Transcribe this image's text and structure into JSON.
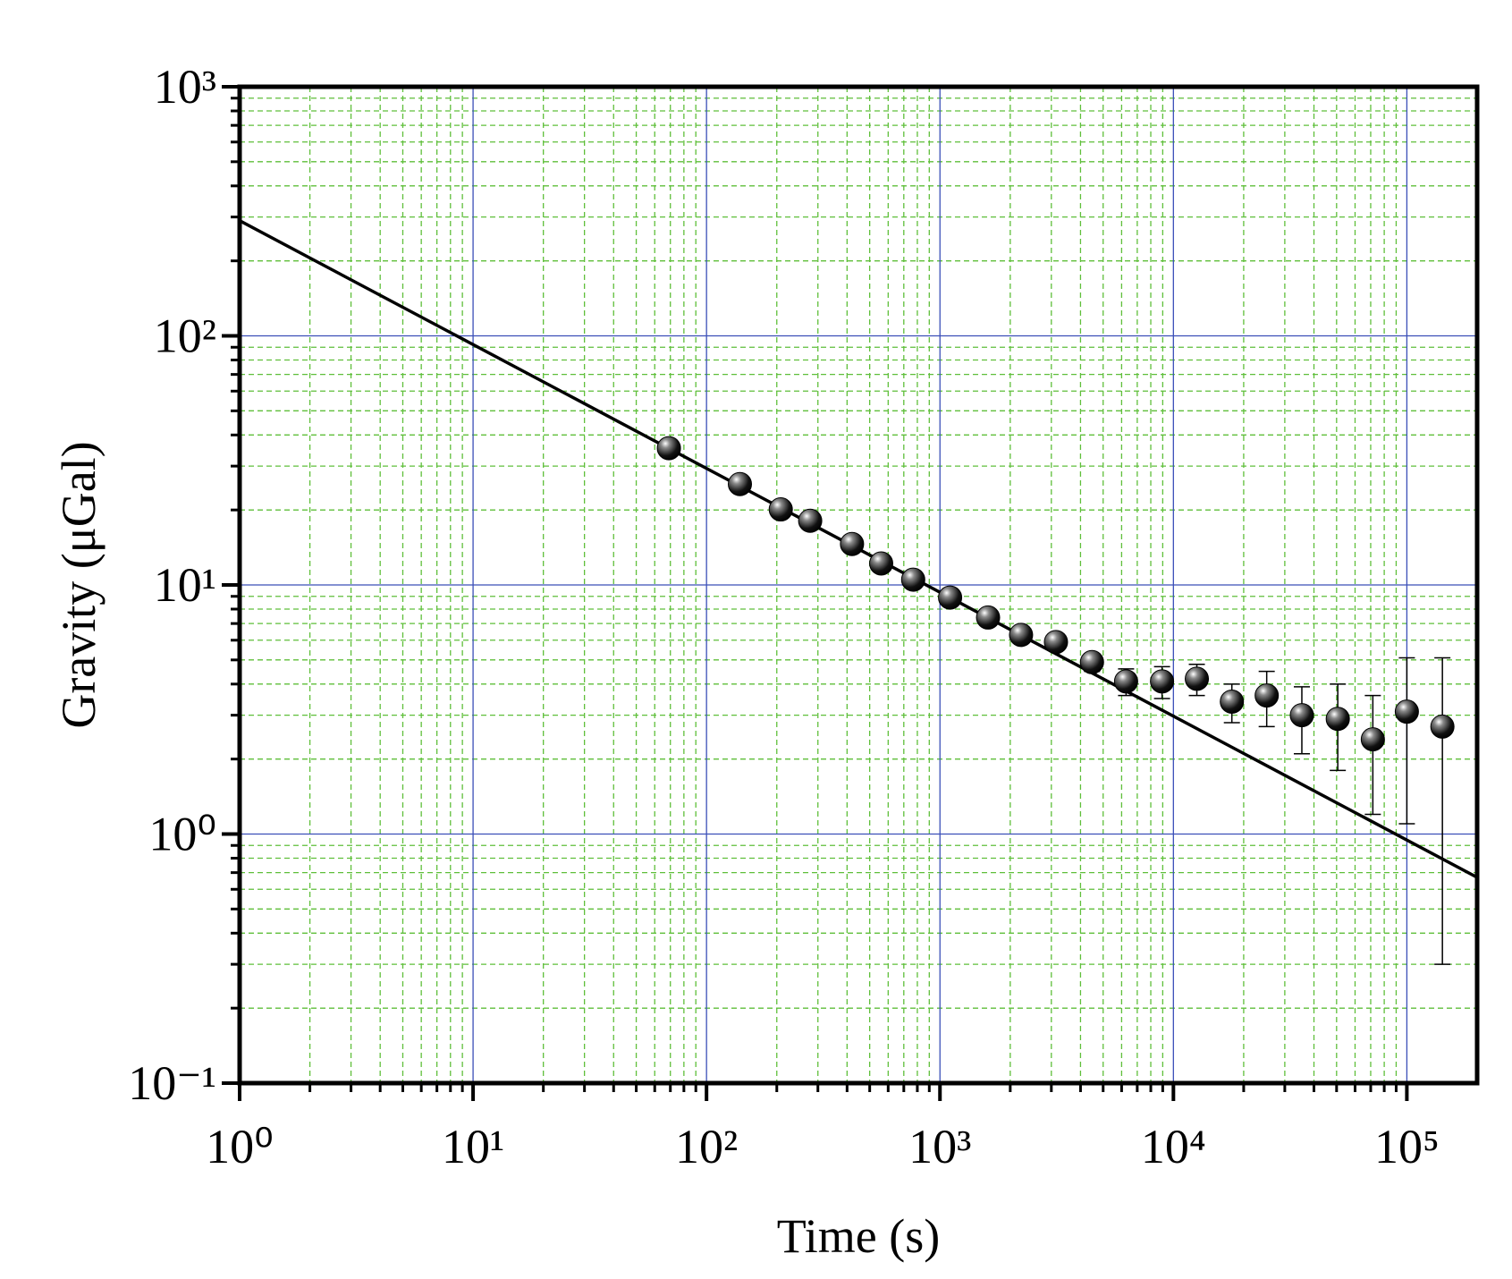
{
  "chart_data": {
    "type": "scatter",
    "xlabel": "Time (s)",
    "ylabel": "Gravity (μGal)",
    "xscale": "log",
    "yscale": "log",
    "xlim": [
      1,
      200000
    ],
    "ylim": [
      0.1,
      1000
    ],
    "xticks": [
      {
        "value": 1,
        "label": "10⁰"
      },
      {
        "value": 10,
        "label": "10¹"
      },
      {
        "value": 100,
        "label": "10²"
      },
      {
        "value": 1000,
        "label": "10³"
      },
      {
        "value": 10000,
        "label": "10⁴"
      },
      {
        "value": 100000,
        "label": "10⁵"
      }
    ],
    "yticks": [
      {
        "value": 0.1,
        "label": "10⁻¹"
      },
      {
        "value": 1,
        "label": "10⁰"
      },
      {
        "value": 10,
        "label": "10¹"
      },
      {
        "value": 100,
        "label": "10²"
      },
      {
        "value": 1000,
        "label": "10³"
      }
    ],
    "xminor": [
      2,
      3,
      4,
      5,
      6,
      7,
      8,
      9,
      20,
      30,
      40,
      50,
      60,
      70,
      80,
      90,
      200,
      300,
      400,
      500,
      600,
      700,
      800,
      900,
      2000,
      3000,
      4000,
      5000,
      6000,
      7000,
      8000,
      9000,
      20000,
      30000,
      40000,
      50000,
      60000,
      70000,
      80000,
      90000
    ],
    "yminor": [
      0.2,
      0.3,
      0.4,
      0.5,
      0.6,
      0.7,
      0.8,
      0.9,
      2,
      3,
      4,
      5,
      6,
      7,
      8,
      9,
      20,
      30,
      40,
      50,
      60,
      70,
      80,
      90,
      200,
      300,
      400,
      500,
      600,
      700,
      800,
      900
    ],
    "grid": true,
    "major_grid_color": "#3b4fb8",
    "minor_grid_color": "#5fbf3a",
    "x": [
      69,
      139,
      208,
      278,
      420,
      560,
      768,
      1105,
      1607,
      2225,
      3140,
      4480,
      6270,
      8940,
      12600,
      17800,
      25100,
      35500,
      50600,
      71500,
      100000,
      142000
    ],
    "values": [
      35.4,
      25.4,
      20.1,
      18.1,
      14.6,
      12.2,
      10.5,
      8.9,
      7.4,
      6.3,
      5.9,
      4.9,
      4.1,
      4.1,
      4.2,
      3.4,
      3.6,
      3.0,
      2.9,
      2.4,
      3.1,
      2.7
    ],
    "errors": [
      0.3,
      0.3,
      0.3,
      0.3,
      0.3,
      0.3,
      0.3,
      0.3,
      0.3,
      0.3,
      0.3,
      0.4,
      0.5,
      0.6,
      0.6,
      0.6,
      0.9,
      0.9,
      1.1,
      1.2,
      2.0,
      2.4
    ],
    "color": "#000000",
    "fit_line": {
      "x": [
        1,
        200000
      ],
      "values": [
        290,
        0.67
      ],
      "color": "#000000"
    }
  }
}
